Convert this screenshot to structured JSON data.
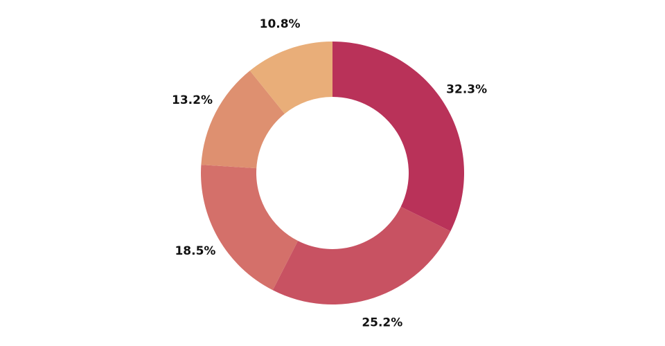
{
  "chart_data": {
    "type": "pie",
    "variant": "donut",
    "title": "",
    "legend": "none",
    "start_angle_deg": 0,
    "direction": "clockwise",
    "slices": [
      {
        "value": 32.3,
        "label": "32.3%",
        "color": "#b93259"
      },
      {
        "value": 25.2,
        "label": "25.2%",
        "color": "#c85262"
      },
      {
        "value": 18.5,
        "label": "18.5%",
        "color": "#d4706a"
      },
      {
        "value": 13.2,
        "label": "13.2%",
        "color": "#de9070"
      },
      {
        "value": 10.8,
        "label": "10.8%",
        "color": "#e9ae79"
      }
    ]
  }
}
